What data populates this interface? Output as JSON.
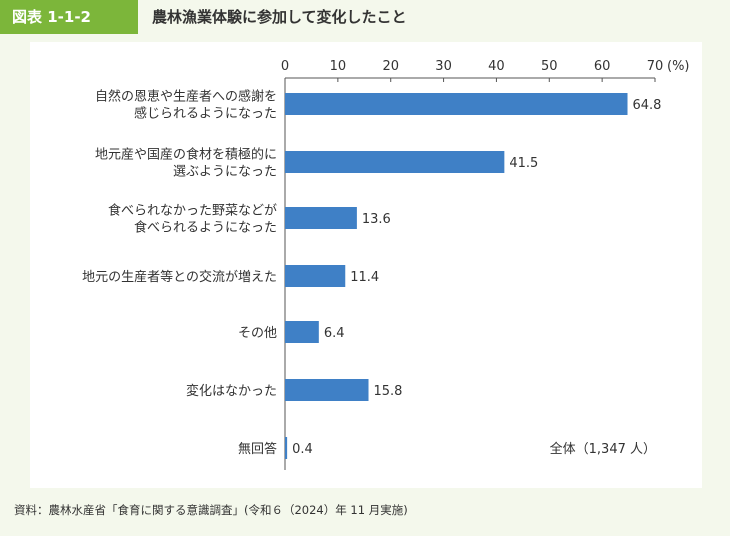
{
  "header": {
    "figure_label": "図表 1-1-2",
    "title": "農林漁業体験に参加して変化したこと"
  },
  "chart_data": {
    "type": "bar",
    "orientation": "horizontal",
    "categories": [
      [
        "自然の恩恵や生産者への感謝を",
        "感じられるようになった"
      ],
      [
        "地元産や国産の食材を積極的に",
        "選ぶようになった"
      ],
      [
        "食べられなかった野菜などが",
        "食べられるようになった"
      ],
      [
        "地元の生産者等との交流が増えた"
      ],
      [
        "その他"
      ],
      [
        "変化はなかった"
      ],
      [
        "無回答"
      ]
    ],
    "values": [
      64.8,
      41.5,
      13.6,
      11.4,
      6.4,
      15.8,
      0.4
    ],
    "value_labels": [
      "64.8",
      "41.5",
      "13.6",
      "11.4",
      "6.4",
      "15.8",
      "0.4"
    ],
    "xlim": [
      0,
      70
    ],
    "ticks": [
      0,
      10,
      20,
      30,
      40,
      50,
      60,
      70
    ],
    "tick_labels": [
      "0",
      "10",
      "20",
      "30",
      "40",
      "50",
      "60",
      "70"
    ],
    "unit_label": "(%)",
    "annotation": "全体（1,347 人）",
    "bar_color": "#3f80c6",
    "grid": false
  },
  "footer": {
    "source": "資料：農林水産省「食育に関する意識調査」(令和６（2024）年 11 月実施)"
  }
}
